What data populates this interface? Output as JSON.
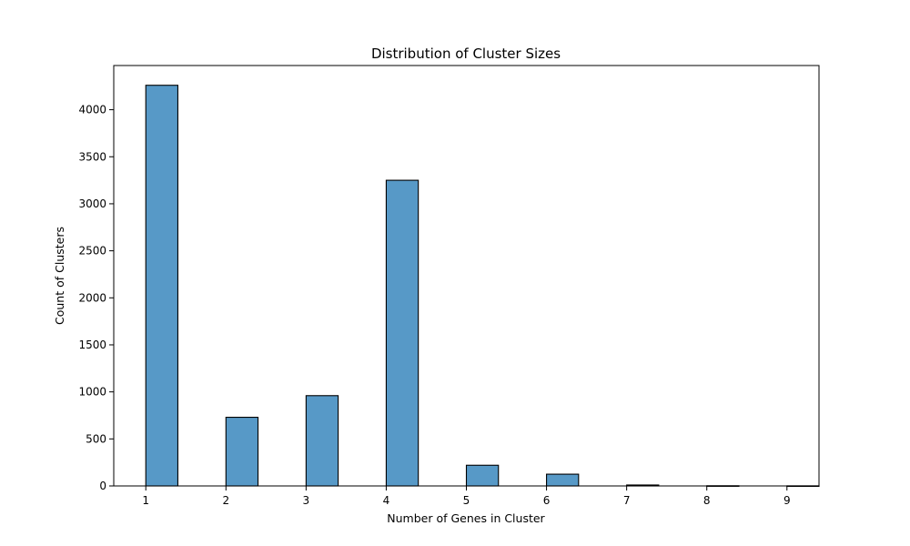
{
  "chart_data": {
    "type": "bar",
    "title": "Distribution of Cluster Sizes",
    "xlabel": "Number of Genes in Cluster",
    "ylabel": "Count of Clusters",
    "xlim": [
      0.6,
      9.4
    ],
    "ylim": [
      0,
      4470
    ],
    "xticks": [
      1,
      2,
      3,
      4,
      5,
      6,
      7,
      8,
      9
    ],
    "yticks": [
      0,
      500,
      1000,
      1500,
      2000,
      2500,
      3000,
      3500,
      4000
    ],
    "bar_width": 0.4,
    "bars": [
      {
        "x": 1,
        "value": 4260
      },
      {
        "x": 2,
        "value": 730
      },
      {
        "x": 3,
        "value": 960
      },
      {
        "x": 4,
        "value": 3250
      },
      {
        "x": 5,
        "value": 220
      },
      {
        "x": 6,
        "value": 125
      },
      {
        "x": 7,
        "value": 10
      },
      {
        "x": 8,
        "value": 2
      },
      {
        "x": 9,
        "value": 1
      }
    ],
    "color": "#5799c7",
    "edge_color": "#000000",
    "grid": false,
    "legend": false
  }
}
